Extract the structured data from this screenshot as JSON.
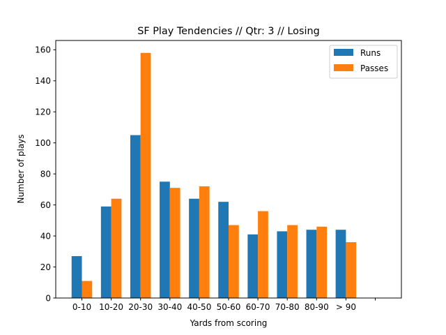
{
  "chart_data": {
    "type": "bar",
    "title": "SF Play Tendencies // Qtr: 3 // Losing",
    "xlabel": "Yards from scoring",
    "ylabel": "Number of plays",
    "categories": [
      "0-10",
      "10-20",
      "20-30",
      "30-40",
      "40-50",
      "50-60",
      "60-70",
      "70-80",
      "80-90",
      "> 90",
      ""
    ],
    "series": [
      {
        "name": "Runs",
        "color": "#1f77b4",
        "values": [
          27,
          59,
          105,
          75,
          64,
          62,
          41,
          43,
          44,
          44,
          0
        ]
      },
      {
        "name": "Passes",
        "color": "#ff7f0e",
        "values": [
          11,
          64,
          158,
          71,
          72,
          47,
          56,
          47,
          46,
          36,
          0
        ]
      }
    ],
    "ylim": [
      0,
      166
    ],
    "yticks": [
      0,
      20,
      40,
      60,
      80,
      100,
      120,
      140,
      160
    ],
    "grid": false,
    "legend_position": "top-right"
  }
}
